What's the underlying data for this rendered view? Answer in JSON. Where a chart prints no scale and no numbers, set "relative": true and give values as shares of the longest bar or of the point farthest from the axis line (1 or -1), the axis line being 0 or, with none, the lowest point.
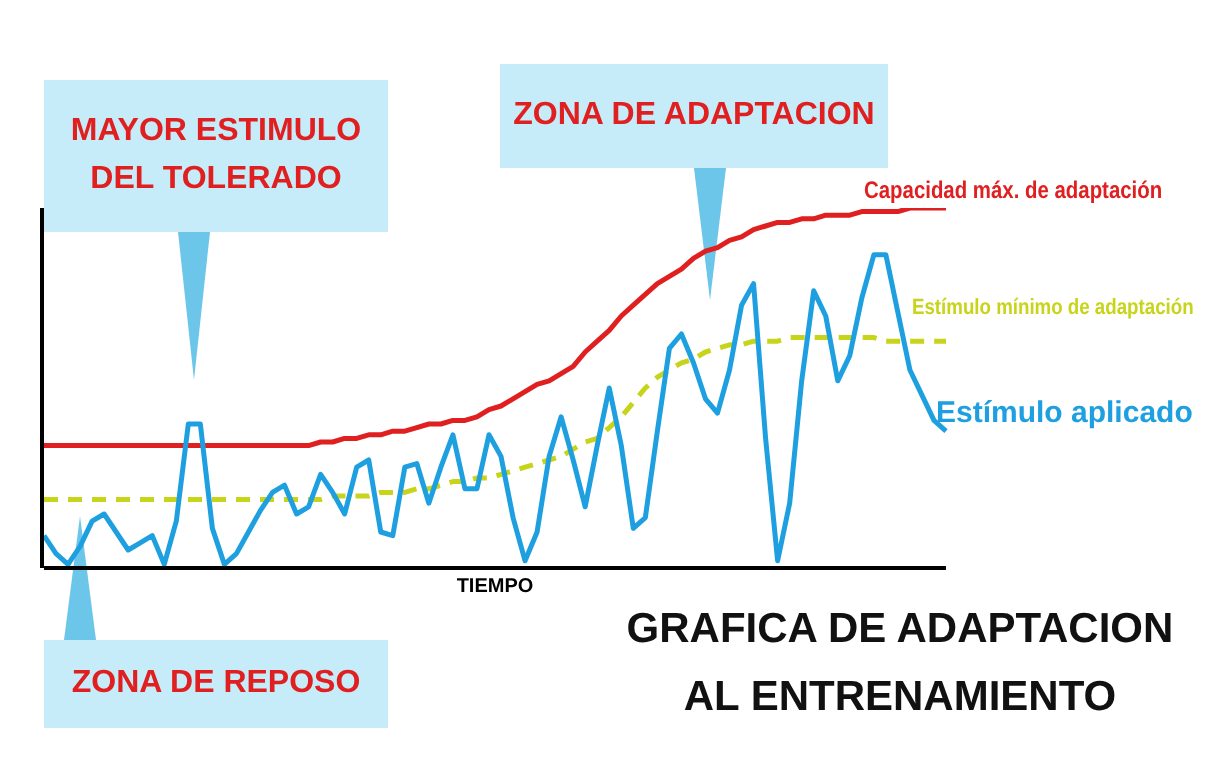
{
  "chart_data": {
    "type": "line",
    "title": "GRAFICA DE ADAPTACION AL ENTRENAMIENTO",
    "xlabel": "TIEMPO",
    "relative": true,
    "annotations": [
      "MAYOR ESTIMULO DEL TOLERADO",
      "ZONA DE ADAPTACION",
      "ZONA DE REPOSO"
    ],
    "categories": [
      null,
      null,
      null,
      null,
      null,
      null,
      null,
      null,
      null,
      null,
      null,
      null,
      null,
      null,
      null,
      null,
      null,
      null,
      null,
      null,
      null,
      null,
      null,
      null,
      null,
      null,
      null,
      null,
      null,
      null,
      null,
      null,
      null,
      null,
      null,
      null,
      null,
      null,
      null,
      null,
      null,
      null,
      null,
      null,
      null,
      null,
      null,
      null,
      null,
      null,
      null,
      null,
      null,
      null,
      null,
      null,
      null,
      null,
      null,
      null,
      null,
      null,
      null,
      null,
      null,
      null,
      null,
      null,
      null,
      null,
      null,
      null,
      null,
      null,
      null,
      null
    ],
    "series": [
      {
        "name": "Capacidad máx. de adaptación",
        "color": "#e02020",
        "line_style": "solid",
        "values": [
          0.34,
          0.34,
          0.34,
          0.34,
          0.34,
          0.34,
          0.34,
          0.34,
          0.34,
          0.34,
          0.34,
          0.34,
          0.34,
          0.34,
          0.34,
          0.34,
          0.34,
          0.34,
          0.34,
          0.34,
          0.34,
          0.34,
          0.34,
          0.35,
          0.35,
          0.36,
          0.36,
          0.37,
          0.37,
          0.38,
          0.38,
          0.39,
          0.4,
          0.4,
          0.41,
          0.41,
          0.42,
          0.44,
          0.45,
          0.47,
          0.49,
          0.51,
          0.52,
          0.54,
          0.56,
          0.6,
          0.63,
          0.66,
          0.7,
          0.73,
          0.76,
          0.79,
          0.81,
          0.83,
          0.86,
          0.88,
          0.89,
          0.91,
          0.92,
          0.94,
          0.95,
          0.96,
          0.96,
          0.97,
          0.97,
          0.98,
          0.98,
          0.98,
          0.99,
          0.99,
          0.99,
          0.99,
          1.0,
          1.0,
          1.0,
          1.0
        ]
      },
      {
        "name": "Estímulo mínimo de adaptación",
        "color": "#c8d41a",
        "line_style": "dashed",
        "values": [
          0.19,
          0.19,
          0.19,
          0.19,
          0.19,
          0.19,
          0.19,
          0.19,
          0.19,
          0.19,
          0.19,
          0.19,
          0.19,
          0.19,
          0.19,
          0.19,
          0.19,
          0.19,
          0.19,
          0.19,
          0.19,
          0.19,
          0.19,
          0.19,
          0.2,
          0.2,
          0.2,
          0.2,
          0.21,
          0.21,
          0.21,
          0.22,
          0.22,
          0.23,
          0.24,
          0.24,
          0.25,
          0.25,
          0.26,
          0.27,
          0.28,
          0.29,
          0.3,
          0.31,
          0.33,
          0.35,
          0.36,
          0.39,
          0.42,
          0.46,
          0.5,
          0.53,
          0.55,
          0.57,
          0.58,
          0.6,
          0.61,
          0.62,
          0.62,
          0.63,
          0.63,
          0.63,
          0.64,
          0.64,
          0.64,
          0.64,
          0.64,
          0.64,
          0.64,
          0.64,
          0.63,
          0.63,
          0.63,
          0.63,
          0.63,
          0.63
        ]
      },
      {
        "name": "Estímulo aplicado",
        "color": "#1ea0e0",
        "line_style": "solid",
        "values": [
          0.09,
          0.04,
          0.01,
          0.06,
          0.13,
          0.15,
          0.1,
          0.05,
          0.07,
          0.09,
          0.01,
          0.13,
          0.4,
          0.4,
          0.11,
          0.01,
          0.04,
          0.1,
          0.16,
          0.21,
          0.23,
          0.15,
          0.17,
          0.26,
          0.21,
          0.15,
          0.28,
          0.3,
          0.1,
          0.09,
          0.28,
          0.29,
          0.18,
          0.28,
          0.37,
          0.22,
          0.22,
          0.37,
          0.31,
          0.14,
          0.02,
          0.1,
          0.31,
          0.42,
          0.3,
          0.17,
          0.34,
          0.5,
          0.34,
          0.11,
          0.14,
          0.38,
          0.61,
          0.65,
          0.57,
          0.47,
          0.43,
          0.55,
          0.73,
          0.79,
          0.36,
          0.02,
          0.18,
          0.52,
          0.77,
          0.7,
          0.52,
          0.59,
          0.75,
          0.87,
          0.87,
          0.71,
          0.55,
          0.48,
          0.41,
          0.38
        ]
      }
    ]
  }
}
